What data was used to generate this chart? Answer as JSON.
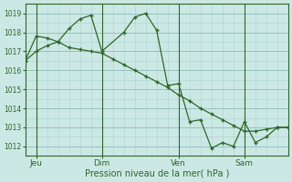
{
  "background_color": "#cce8e4",
  "plot_bg_color": "#cce8e4",
  "grid_major_color": "#8bbcb8",
  "grid_minor_color": "#aad4d0",
  "line_color": "#2d6629",
  "xlabel": "Pression niveau de la mer( hPa )",
  "ylim": [
    1011.5,
    1019.5
  ],
  "yticks": [
    1012,
    1013,
    1014,
    1015,
    1016,
    1017,
    1018,
    1019
  ],
  "xlim": [
    0,
    192
  ],
  "day_labels": [
    "Jeu",
    "Dim",
    "Ven",
    "Sam"
  ],
  "day_positions": [
    8,
    56,
    112,
    160
  ],
  "series1_x": [
    0,
    8,
    16,
    24,
    32,
    40,
    48,
    56,
    64,
    72,
    80,
    88,
    96,
    104,
    112,
    120,
    128,
    136,
    144,
    152,
    160,
    168,
    176,
    184,
    192
  ],
  "series1_y": [
    1016.5,
    1017.0,
    1017.3,
    1017.5,
    1017.2,
    1017.1,
    1017.0,
    1016.9,
    1016.6,
    1016.3,
    1016.0,
    1015.7,
    1015.4,
    1015.1,
    1014.7,
    1014.4,
    1014.0,
    1013.7,
    1013.4,
    1013.1,
    1012.8,
    1012.8,
    1012.9,
    1013.0,
    1013.0
  ],
  "series2_x": [
    0,
    8,
    16,
    24,
    32,
    40,
    48,
    56,
    72,
    80,
    88,
    96,
    104,
    112,
    120,
    128,
    136,
    144,
    152,
    160,
    168,
    176,
    184,
    192
  ],
  "series2_y": [
    1016.5,
    1017.8,
    1017.7,
    1017.5,
    1018.2,
    1018.7,
    1018.9,
    1017.0,
    1018.0,
    1018.8,
    1019.0,
    1018.1,
    1015.2,
    1015.3,
    1013.3,
    1013.4,
    1011.9,
    1012.2,
    1012.0,
    1013.3,
    1012.2,
    1012.5,
    1013.0,
    1013.0
  ]
}
